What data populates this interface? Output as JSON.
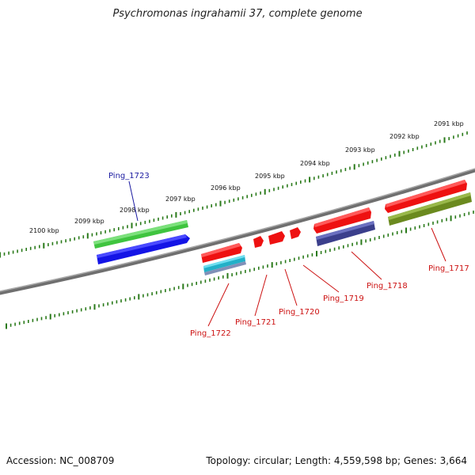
{
  "title": "Psychromonas ingrahamii 37, complete genome",
  "footer": {
    "accession": "Accession: NC_008709",
    "summary": "Topology: circular; Length: 4,559,598 bp; Genes: 3,664"
  },
  "colors": {
    "backbone": "#777777",
    "tick": "#2a7a1a",
    "highlight_label": "#1a1aa0",
    "gene_label": "#cc1111"
  },
  "scale_labels": [
    "2091 kbp",
    "2092 kbp",
    "2093 kbp",
    "2094 kbp",
    "2095 kbp",
    "2096 kbp",
    "2097 kbp",
    "2098 kbp",
    "2099 kbp",
    "2100 kbp"
  ],
  "genes": [
    {
      "label": "Ping_1723",
      "highlighted": true
    },
    {
      "label": "Ping_1722",
      "highlighted": false
    },
    {
      "label": "Ping_1721",
      "highlighted": false
    },
    {
      "label": "Ping_1720",
      "highlighted": false
    },
    {
      "label": "Ping_1719",
      "highlighted": false
    },
    {
      "label": "Ping_1718",
      "highlighted": false
    },
    {
      "label": "Ping_1717",
      "highlighted": false
    }
  ]
}
